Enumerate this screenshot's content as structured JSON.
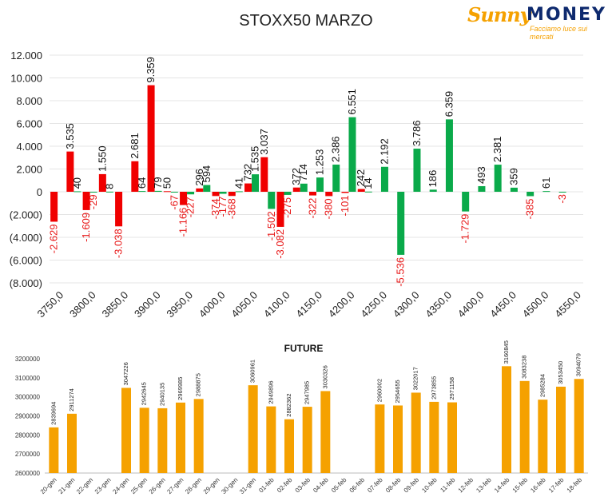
{
  "colors": {
    "negative_label": "#e81818",
    "red_bar": "#f00000",
    "green_bar": "#0aaa4a",
    "future_bar": "#f5a100",
    "grid": "#e4e4e4"
  },
  "logo": {
    "name_part1": "Sunny",
    "name_part2": "MONEY",
    "tagline": "Facciamo luce sui mercati"
  },
  "chart_data": [
    {
      "type": "bar",
      "title": "STOXX50 MARZO",
      "ylim": [
        -8000,
        12000
      ],
      "ytick_labels": [
        "12.000",
        "10.000",
        "8.000",
        "6.000",
        "4.000",
        "2.000",
        "0",
        "(2.000)",
        "(4.000)",
        "(6.000)",
        "(8.000)"
      ],
      "ytick_values": [
        12000,
        10000,
        8000,
        6000,
        4000,
        2000,
        0,
        -2000,
        -4000,
        -6000,
        -8000
      ],
      "categories": [
        "3750,0",
        "3775,0",
        "3800,0",
        "3825,0",
        "3850,0",
        "3875,0",
        "3900,0",
        "3925,0",
        "3950,0",
        "3975,0",
        "4000,0",
        "4025,0",
        "4050,0",
        "4075,0",
        "4100,0",
        "4125,0",
        "4150,0",
        "4175,0",
        "4200,0",
        "4225,0",
        "4250,0",
        "4275,0",
        "4300,0",
        "4325,0",
        "4350,0",
        "4375,0",
        "4400,0",
        "4425,0",
        "4450,0",
        "4475,0",
        "4500,0",
        "4525,0",
        "4550,0"
      ],
      "x_tick_labels": [
        "3750,0",
        "3800,0",
        "3850,0",
        "3900,0",
        "3950,0",
        "4000,0",
        "4050,0",
        "4100,0",
        "4150,0",
        "4200,0",
        "4250,0",
        "4300,0",
        "4350,0",
        "4400,0",
        "4450,0",
        "4500,0",
        "4550,0"
      ],
      "series": [
        {
          "color": "red",
          "values": [
            -2629,
            3535,
            -1609,
            1550,
            -3038,
            2681,
            9359,
            50,
            -1166,
            296,
            -374,
            -368,
            732,
            3037,
            -3082,
            372,
            -322,
            -380,
            -101,
            242,
            null,
            null,
            null,
            null,
            null,
            null,
            null,
            null,
            null,
            null,
            null,
            null,
            null
          ],
          "labels": [
            "-2.629",
            "3.535",
            "-1.609",
            "1.550",
            "-3.038",
            "2.681",
            "9.359",
            "50",
            "-1.166",
            "296",
            "-374",
            "-368",
            "732",
            "3.037",
            "-3.082",
            "372",
            "-322",
            "-380",
            "-101",
            "242",
            "",
            "",
            "",
            "",
            "",
            "",
            "",
            "",
            "",
            "",
            "",
            "",
            ""
          ]
        },
        {
          "color": "green",
          "values": [
            null,
            40,
            -29,
            8,
            null,
            64,
            79,
            -67,
            -227,
            594,
            -177,
            41,
            1535,
            -1502,
            -275,
            714,
            1253,
            2386,
            6551,
            14,
            2192,
            -5536,
            3786,
            186,
            6359,
            -1729,
            493,
            2381,
            359,
            -385,
            61,
            -3,
            null
          ],
          "labels": [
            "",
            "40",
            "-29",
            "8",
            "",
            "64",
            "79",
            "-67",
            "-227",
            "594",
            "-177",
            "41",
            "1.535",
            "-1.502",
            "-275",
            "714",
            "1.253",
            "2.386",
            "6.551",
            "14",
            "2.192",
            "-5.536",
            "3.786",
            "186",
            "6.359",
            "-1.729",
            "493",
            "2.381",
            "359",
            "-385",
            "61",
            "-3",
            ""
          ]
        }
      ]
    },
    {
      "type": "bar",
      "title": "FUTURE",
      "ylim": [
        2600000,
        3200000
      ],
      "ytick_labels": [
        "3200000",
        "3100000",
        "3000000",
        "2900000",
        "2800000",
        "2700000",
        "2600000"
      ],
      "ytick_values": [
        3200000,
        3100000,
        3000000,
        2900000,
        2800000,
        2700000,
        2600000
      ],
      "categories": [
        "20-gen",
        "21-gen",
        "22-gen",
        "23-gen",
        "24-gen",
        "25-gen",
        "26-gen",
        "27-gen",
        "28-gen",
        "29-gen",
        "30-gen",
        "31-gen",
        "01-feb",
        "02-feb",
        "03-feb",
        "04-feb",
        "05-feb",
        "06-feb",
        "07-feb",
        "08-feb",
        "09-feb",
        "10-feb",
        "11-feb",
        "12-feb",
        "13-feb",
        "14-feb",
        "15-feb",
        "16-feb",
        "17-feb",
        "18-feb"
      ],
      "values": [
        2839694,
        2911274,
        null,
        null,
        3047226,
        2942645,
        2940135,
        2969985,
        2988875,
        null,
        null,
        3060961,
        2949896,
        2882362,
        2947985,
        3030326,
        null,
        null,
        2960002,
        2954655,
        3022017,
        2973855,
        2971158,
        null,
        null,
        3160845,
        3083238,
        2985284,
        3053450,
        3094079
      ],
      "labels": [
        "2839694",
        "2911274",
        "",
        "",
        "3047226",
        "2942645",
        "2940135",
        "2969985",
        "2988875",
        "",
        "",
        "3060961",
        "2949896",
        "2882362",
        "2947985",
        "3030326",
        "",
        "",
        "2960002",
        "2954655",
        "3022017",
        "2973855",
        "2971158",
        "",
        "",
        "3160845",
        "3083238",
        "2985284",
        "3053450",
        "3094079"
      ]
    }
  ]
}
